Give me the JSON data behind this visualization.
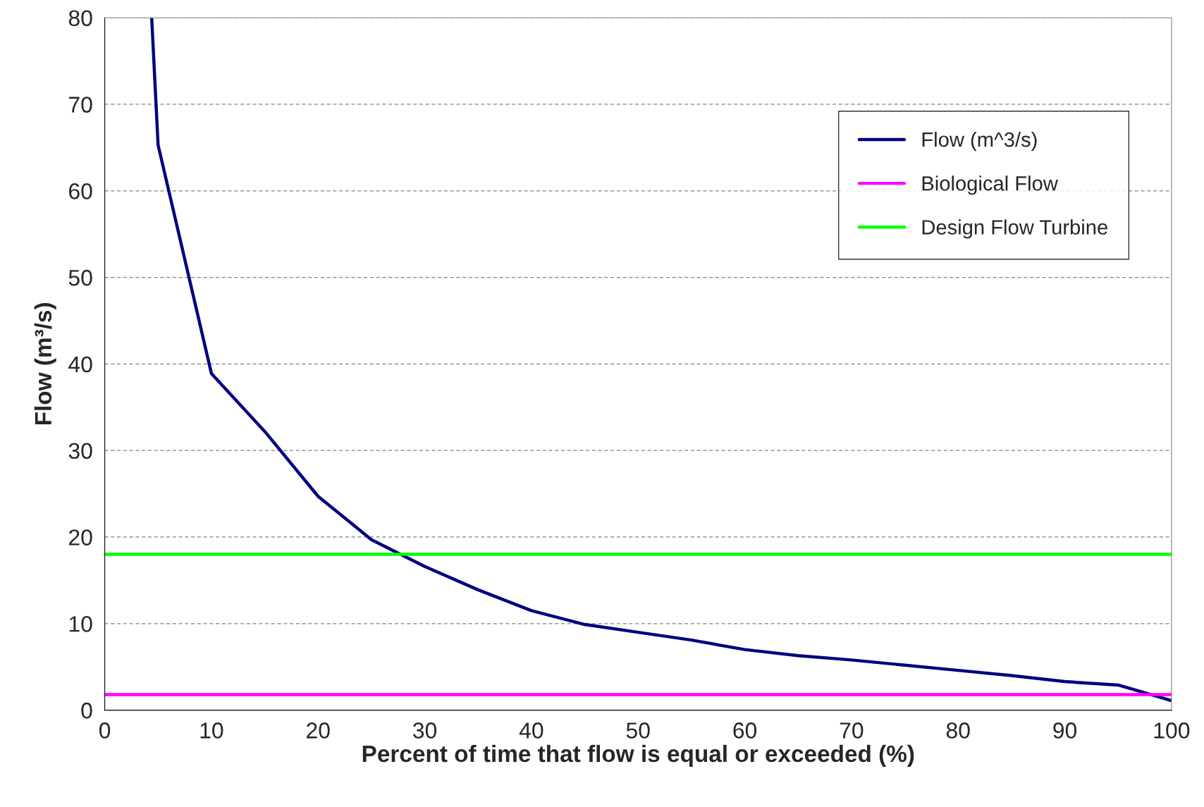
{
  "chart_data": {
    "type": "line",
    "xlabel": "Percent of time that flow is equal or exceeded (%)",
    "ylabel": "Flow (m³/s)",
    "xlim": [
      0,
      100
    ],
    "xticks": [
      0,
      10,
      20,
      30,
      40,
      50,
      60,
      70,
      80,
      90,
      100
    ],
    "ylim": [
      0,
      80
    ],
    "yticks": [
      0,
      10,
      20,
      30,
      40,
      50,
      60,
      70,
      80
    ],
    "grid": "y",
    "legend": "top right",
    "marker": "none",
    "line_style": "solid",
    "series": [
      {
        "name": "Flow (m^3/s)",
        "color": "#000080",
        "x": [
          4.4,
          5,
          10,
          15,
          20,
          25,
          30,
          35,
          40,
          45,
          50,
          55,
          60,
          65,
          70,
          75,
          80,
          85,
          90,
          95,
          100
        ],
        "values": [
          80,
          65.3,
          38.9,
          32.2,
          24.7,
          19.7,
          16.6,
          13.9,
          11.5,
          9.9,
          9.0,
          8.1,
          7.0,
          6.3,
          5.8,
          5.2,
          4.6,
          4.0,
          3.3,
          2.9,
          1.1
        ]
      },
      {
        "name": "Biological Flow",
        "color": "#ff00ff",
        "x": [
          0,
          100
        ],
        "values": [
          1.8,
          1.8
        ]
      },
      {
        "name": "Design Flow Turbine",
        "color": "#00ff00",
        "x": [
          0,
          100
        ],
        "values": [
          18,
          18
        ]
      }
    ]
  }
}
